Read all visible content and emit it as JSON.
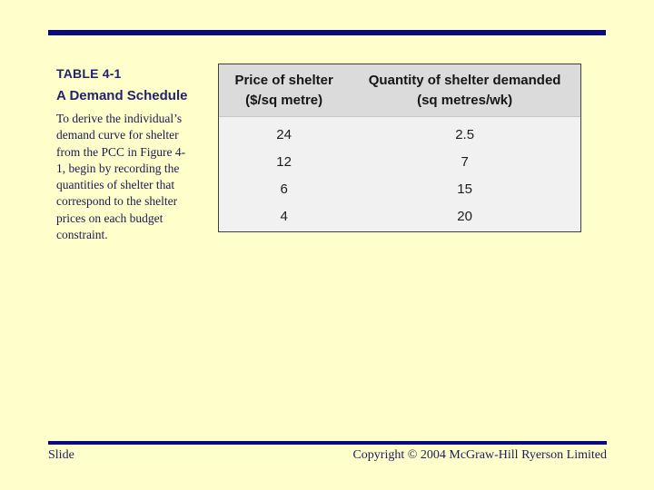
{
  "slide": {
    "bg_color": "#FFFFCC",
    "accent_color": "#0A0A7E"
  },
  "left_panel": {
    "label": "TABLE 4-1",
    "title": "A Demand Schedule",
    "paragraph_lines": [
      "To derive the individual’s",
      "demand curve for shelter",
      "from the PCC in Figure 4-",
      "1, begin by recording the",
      "quantities of shelter that",
      "correspond to the shelter",
      "prices on each budget",
      "constraint."
    ]
  },
  "table": {
    "header": {
      "col1_line1": "Price of shelter",
      "col1_line2": "($/sq metre)",
      "col2_line1": "Quantity of shelter demanded",
      "col2_line2": "(sq metres/wk)"
    },
    "rows": [
      {
        "price": "24",
        "quantity": "2.5"
      },
      {
        "price": "12",
        "quantity": "7"
      },
      {
        "price": "6",
        "quantity": "15"
      },
      {
        "price": "4",
        "quantity": "20"
      }
    ]
  },
  "footer": {
    "left": "Slide",
    "right": "Copyright © 2004 McGraw-Hill Ryerson Limited"
  }
}
